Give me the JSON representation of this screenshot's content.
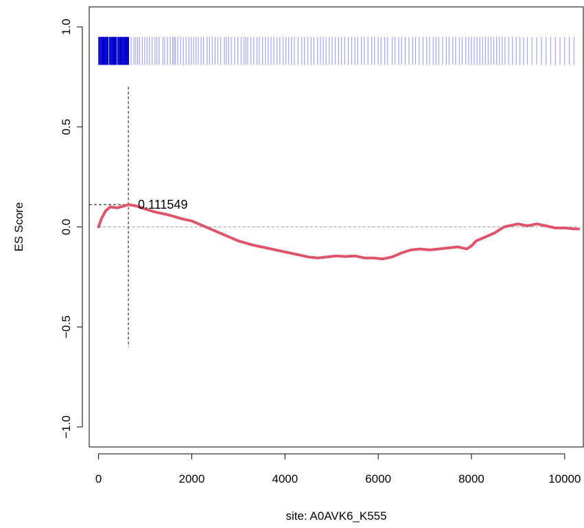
{
  "chart_data": {
    "type": "line",
    "title": "",
    "xlabel": "site: A0AVK6_K555",
    "ylabel": "ES Score",
    "xlim": [
      -200,
      10400
    ],
    "ylim": [
      -1.1,
      1.1
    ],
    "xticks": [
      0,
      2000,
      4000,
      6000,
      8000,
      10000
    ],
    "xtick_labels": [
      "0",
      "2000",
      "4000",
      "6000",
      "8000",
      "10000"
    ],
    "yticks": [
      -1.0,
      -0.5,
      0.0,
      0.5,
      1.0
    ],
    "ytick_labels": [
      "−1.0",
      "−0.5",
      "0.0",
      "0.5",
      "1.0"
    ],
    "grid": false,
    "reference_line_y": 0,
    "max_es": {
      "x": 640,
      "y": 0.111549,
      "label": "0.111549"
    },
    "colors": {
      "es_curve": "#DF536B",
      "hits_leading": "#0000CD",
      "hits_other": "#A3A3F0",
      "reference": "#A0A0A0",
      "marker": "#000000"
    },
    "es_curve": {
      "x": [
        0,
        60,
        150,
        250,
        400,
        550,
        640,
        800,
        1000,
        1200,
        1500,
        1800,
        2000,
        2200,
        2500,
        2800,
        3000,
        3300,
        3600,
        3900,
        4200,
        4500,
        4700,
        4900,
        5100,
        5300,
        5500,
        5700,
        5900,
        6100,
        6300,
        6500,
        6700,
        6900,
        7100,
        7300,
        7500,
        7700,
        7900,
        8000,
        8100,
        8300,
        8500,
        8700,
        8900,
        9000,
        9200,
        9400,
        9600,
        9800,
        10000,
        10200,
        10300
      ],
      "y": [
        0.0,
        0.04,
        0.08,
        0.1,
        0.095,
        0.105,
        0.111549,
        0.105,
        0.09,
        0.075,
        0.06,
        0.04,
        0.03,
        0.01,
        -0.02,
        -0.05,
        -0.07,
        -0.09,
        -0.105,
        -0.12,
        -0.135,
        -0.15,
        -0.155,
        -0.15,
        -0.145,
        -0.148,
        -0.145,
        -0.155,
        -0.155,
        -0.16,
        -0.15,
        -0.13,
        -0.115,
        -0.11,
        -0.115,
        -0.11,
        -0.105,
        -0.1,
        -0.11,
        -0.095,
        -0.07,
        -0.05,
        -0.03,
        0.0,
        0.01,
        0.015,
        0.005,
        0.015,
        0.005,
        -0.005,
        -0.005,
        -0.01,
        -0.01
      ]
    },
    "hit_positions": [
      10,
      40,
      70,
      90,
      110,
      130,
      160,
      180,
      200,
      240,
      270,
      300,
      330,
      360,
      380,
      420,
      450,
      470,
      500,
      530,
      560,
      580,
      610,
      640,
      700,
      760,
      800,
      840,
      880,
      940,
      990,
      1040,
      1090,
      1150,
      1210,
      1250,
      1300,
      1380,
      1420,
      1480,
      1540,
      1590,
      1620,
      1650,
      1700,
      1760,
      1820,
      1880,
      1940,
      1990,
      2040,
      2090,
      2140,
      2200,
      2250,
      2330,
      2380,
      2440,
      2500,
      2560,
      2620,
      2700,
      2740,
      2790,
      2850,
      2920,
      2990,
      3060,
      3120,
      3160,
      3200,
      3270,
      3330,
      3400,
      3450,
      3520,
      3580,
      3640,
      3700,
      3760,
      3830,
      3890,
      3960,
      4020,
      4080,
      4140,
      4200,
      4280,
      4360,
      4420,
      4490,
      4560,
      4620,
      4700,
      4760,
      4820,
      4880,
      4950,
      5010,
      5080,
      5150,
      5210,
      5280,
      5360,
      5430,
      5500,
      5560,
      5640,
      5700,
      5780,
      5860,
      5920,
      6000,
      6060,
      6140,
      6200,
      6300,
      6360,
      6440,
      6500,
      6580,
      6660,
      6740,
      6800,
      6880,
      6960,
      7040,
      7100,
      7180,
      7240,
      7300,
      7380,
      7460,
      7520,
      7600,
      7660,
      7740,
      7800,
      7880,
      7940,
      8000,
      8060,
      8120,
      8180,
      8240,
      8300,
      8360,
      8420,
      8480,
      8540,
      8600,
      8660,
      8720,
      8800,
      8880,
      8960,
      9040,
      9120,
      9200,
      9300,
      9400,
      9500,
      9600,
      9700,
      9800,
      9900,
      10000,
      10100,
      10200
    ],
    "leading_edge_end": 640,
    "hit_band": {
      "y_bottom": 0.81,
      "y_top": 0.95
    },
    "marker_vline": {
      "y_from": -0.6,
      "y_to": 0.7
    }
  }
}
